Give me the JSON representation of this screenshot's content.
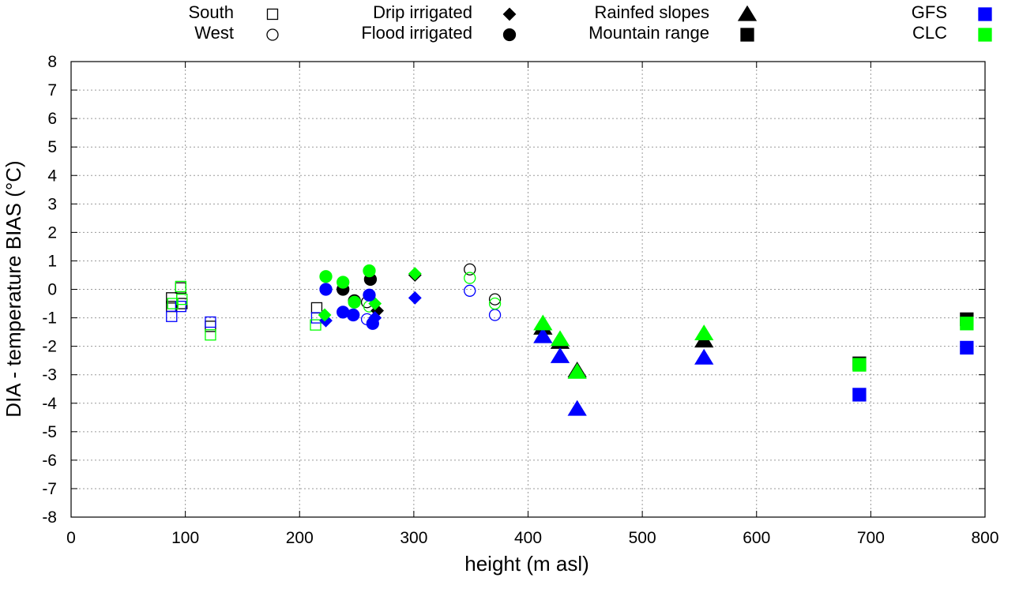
{
  "chart_data": {
    "type": "scatter",
    "xlabel": "height (m asl)",
    "ylabel": "DIA - temperature BIAS (°C)",
    "xlim": [
      0,
      800
    ],
    "ylim": [
      -8,
      8
    ],
    "xticks": [
      0,
      100,
      200,
      300,
      400,
      500,
      600,
      700,
      800
    ],
    "yticks": [
      8,
      7,
      6,
      5,
      4,
      3,
      2,
      1,
      0,
      -1,
      -2,
      -3,
      -4,
      -5,
      -6,
      -7,
      -8
    ],
    "grid": true,
    "legend": [
      {
        "label": "South",
        "symbol": "square",
        "filled": false,
        "color": "#000000"
      },
      {
        "label": "West",
        "symbol": "circle",
        "filled": false,
        "color": "#000000"
      },
      {
        "label": "Drip irrigated",
        "symbol": "diamond",
        "filled": true,
        "color": "#000000"
      },
      {
        "label": "Flood irrigated",
        "symbol": "circle",
        "filled": true,
        "color": "#000000"
      },
      {
        "label": "Rainfed slopes",
        "symbol": "triangle",
        "filled": true,
        "color": "#000000"
      },
      {
        "label": "Mountain range",
        "symbol": "square",
        "filled": true,
        "color": "#000000"
      },
      {
        "label": "GFS",
        "symbol": "square",
        "filled": true,
        "color": "#0000ff"
      },
      {
        "label": "CLC",
        "symbol": "square",
        "filled": true,
        "color": "#00ff00"
      }
    ],
    "series": [
      {
        "name": "South",
        "symbol": "square",
        "filled": false,
        "points": [
          {
            "x": 88,
            "y": -0.3,
            "color": "#000000"
          },
          {
            "x": 88,
            "y": -0.6,
            "color": "#000000"
          },
          {
            "x": 96,
            "y": 0.05,
            "color": "#000000"
          },
          {
            "x": 97,
            "y": -0.5,
            "color": "#000000"
          },
          {
            "x": 122,
            "y": -1.3,
            "color": "#000000"
          },
          {
            "x": 215,
            "y": -0.65,
            "color": "#000000"
          },
          {
            "x": 88,
            "y": -0.95,
            "color": "#0000ff"
          },
          {
            "x": 96,
            "y": -0.6,
            "color": "#0000ff"
          },
          {
            "x": 122,
            "y": -1.15,
            "color": "#0000ff"
          },
          {
            "x": 215,
            "y": -1.0,
            "color": "#0000ff"
          },
          {
            "x": 89,
            "y": -0.5,
            "color": "#00ff00"
          },
          {
            "x": 96,
            "y": 0.1,
            "color": "#00ff00"
          },
          {
            "x": 97,
            "y": -0.35,
            "color": "#00ff00"
          },
          {
            "x": 122,
            "y": -1.6,
            "color": "#00ff00"
          },
          {
            "x": 214,
            "y": -1.25,
            "color": "#00ff00"
          }
        ]
      },
      {
        "name": "West",
        "symbol": "circle",
        "filled": false,
        "points": [
          {
            "x": 259,
            "y": -0.45,
            "color": "#000000"
          },
          {
            "x": 349,
            "y": 0.7,
            "color": "#000000"
          },
          {
            "x": 371,
            "y": -0.35,
            "color": "#000000"
          },
          {
            "x": 259,
            "y": -1.05,
            "color": "#0000ff"
          },
          {
            "x": 349,
            "y": -0.05,
            "color": "#0000ff"
          },
          {
            "x": 371,
            "y": -0.9,
            "color": "#0000ff"
          },
          {
            "x": 261,
            "y": -0.6,
            "color": "#00ff00"
          },
          {
            "x": 349,
            "y": 0.4,
            "color": "#00ff00"
          },
          {
            "x": 371,
            "y": -0.5,
            "color": "#00ff00"
          }
        ]
      },
      {
        "name": "Drip irrigated",
        "symbol": "diamond",
        "filled": true,
        "points": [
          {
            "x": 268,
            "y": -0.75,
            "color": "#000000"
          },
          {
            "x": 301,
            "y": 0.5,
            "color": "#000000"
          },
          {
            "x": 223,
            "y": -1.1,
            "color": "#0000ff"
          },
          {
            "x": 266,
            "y": -1.0,
            "color": "#0000ff"
          },
          {
            "x": 301,
            "y": -0.3,
            "color": "#0000ff"
          },
          {
            "x": 222,
            "y": -0.9,
            "color": "#00ff00"
          },
          {
            "x": 266,
            "y": -0.5,
            "color": "#00ff00"
          },
          {
            "x": 301,
            "y": 0.55,
            "color": "#00ff00"
          }
        ]
      },
      {
        "name": "Flood irrigated",
        "symbol": "circle",
        "filled": true,
        "points": [
          {
            "x": 238,
            "y": 0.0,
            "color": "#000000"
          },
          {
            "x": 248,
            "y": -0.4,
            "color": "#000000"
          },
          {
            "x": 262,
            "y": 0.35,
            "color": "#000000"
          },
          {
            "x": 223,
            "y": 0.0,
            "color": "#0000ff"
          },
          {
            "x": 238,
            "y": -0.8,
            "color": "#0000ff"
          },
          {
            "x": 247,
            "y": -0.9,
            "color": "#0000ff"
          },
          {
            "x": 261,
            "y": -0.2,
            "color": "#0000ff"
          },
          {
            "x": 264,
            "y": -1.2,
            "color": "#0000ff"
          },
          {
            "x": 223,
            "y": 0.45,
            "color": "#00ff00"
          },
          {
            "x": 238,
            "y": 0.25,
            "color": "#00ff00"
          },
          {
            "x": 248,
            "y": -0.45,
            "color": "#00ff00"
          },
          {
            "x": 261,
            "y": 0.65,
            "color": "#00ff00"
          }
        ]
      },
      {
        "name": "Rainfed slopes",
        "symbol": "triangle",
        "filled": true,
        "points": [
          {
            "x": 413,
            "y": -1.35,
            "color": "#000000"
          },
          {
            "x": 428,
            "y": -1.85,
            "color": "#000000"
          },
          {
            "x": 443,
            "y": -2.85,
            "color": "#000000"
          },
          {
            "x": 554,
            "y": -1.8,
            "color": "#000000"
          },
          {
            "x": 413,
            "y": -1.65,
            "color": "#0000ff"
          },
          {
            "x": 428,
            "y": -2.35,
            "color": "#0000ff"
          },
          {
            "x": 443,
            "y": -4.2,
            "color": "#0000ff"
          },
          {
            "x": 554,
            "y": -2.4,
            "color": "#0000ff"
          },
          {
            "x": 413,
            "y": -1.2,
            "color": "#00ff00"
          },
          {
            "x": 428,
            "y": -1.75,
            "color": "#00ff00"
          },
          {
            "x": 443,
            "y": -2.9,
            "color": "#00ff00"
          },
          {
            "x": 554,
            "y": -1.55,
            "color": "#00ff00"
          }
        ]
      },
      {
        "name": "Mountain range",
        "symbol": "square",
        "filled": true,
        "points": [
          {
            "x": 690,
            "y": -2.6,
            "color": "#000000"
          },
          {
            "x": 784,
            "y": -1.05,
            "color": "#000000"
          },
          {
            "x": 690,
            "y": -3.7,
            "color": "#0000ff"
          },
          {
            "x": 784,
            "y": -2.05,
            "color": "#0000ff"
          },
          {
            "x": 690,
            "y": -2.65,
            "color": "#00ff00"
          },
          {
            "x": 784,
            "y": -1.2,
            "color": "#00ff00"
          }
        ]
      }
    ]
  }
}
